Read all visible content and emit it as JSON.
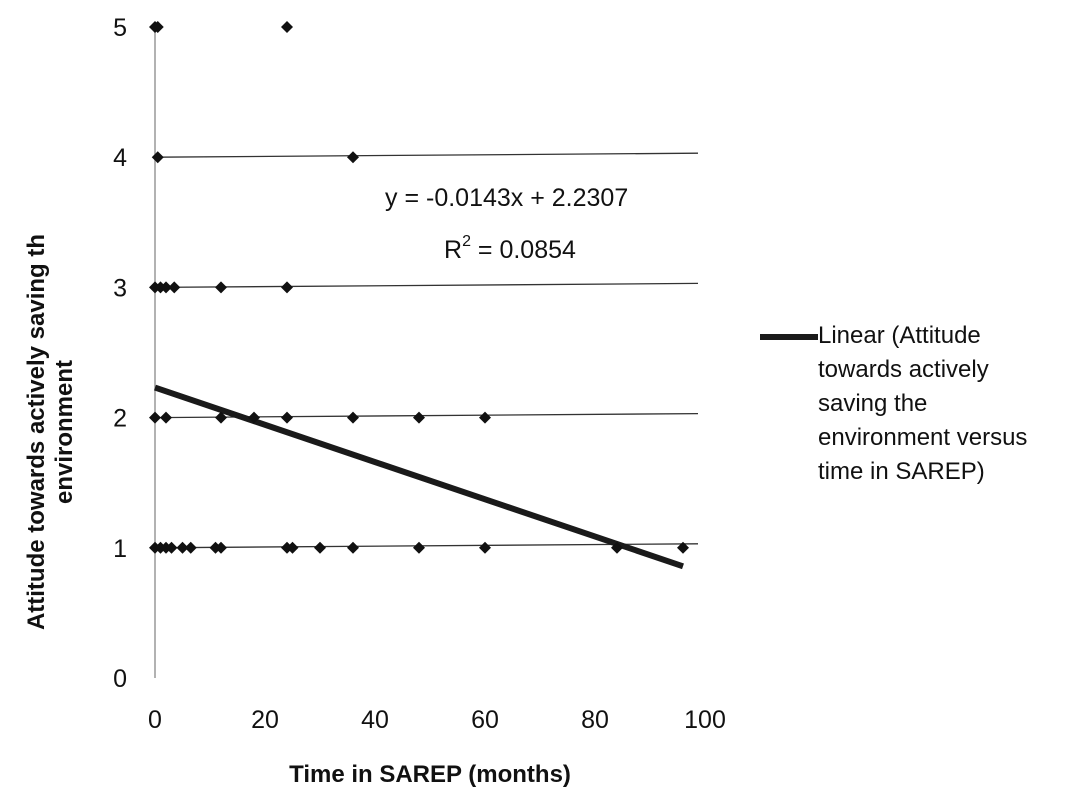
{
  "chart_data": {
    "type": "scatter",
    "title": "",
    "xlabel": "Time in SAREP (months)",
    "ylabel_lines": [
      "Attitude towards actively saving th",
      "environment"
    ],
    "xlim": [
      0,
      100
    ],
    "ylim": [
      0,
      5
    ],
    "xticks": [
      "0",
      "20",
      "40",
      "60",
      "80",
      "100"
    ],
    "yticks": [
      "0",
      "1",
      "2",
      "3",
      "4",
      "5"
    ],
    "grid": "none",
    "points": [
      {
        "x": 0,
        "y": 5
      },
      {
        "x": 0.5,
        "y": 5
      },
      {
        "x": 24,
        "y": 5
      },
      {
        "x": 0.5,
        "y": 4
      },
      {
        "x": 36,
        "y": 4
      },
      {
        "x": 0,
        "y": 3
      },
      {
        "x": 1,
        "y": 3
      },
      {
        "x": 2,
        "y": 3
      },
      {
        "x": 3.5,
        "y": 3
      },
      {
        "x": 12,
        "y": 3
      },
      {
        "x": 24,
        "y": 3
      },
      {
        "x": 0,
        "y": 2
      },
      {
        "x": 2,
        "y": 2
      },
      {
        "x": 12,
        "y": 2
      },
      {
        "x": 18,
        "y": 2
      },
      {
        "x": 24,
        "y": 2
      },
      {
        "x": 36,
        "y": 2
      },
      {
        "x": 48,
        "y": 2
      },
      {
        "x": 60,
        "y": 2
      },
      {
        "x": 0,
        "y": 1
      },
      {
        "x": 1,
        "y": 1
      },
      {
        "x": 2,
        "y": 1
      },
      {
        "x": 3,
        "y": 1
      },
      {
        "x": 5,
        "y": 1
      },
      {
        "x": 6.5,
        "y": 1
      },
      {
        "x": 11,
        "y": 1
      },
      {
        "x": 12,
        "y": 1
      },
      {
        "x": 24,
        "y": 1
      },
      {
        "x": 25,
        "y": 1
      },
      {
        "x": 30,
        "y": 1
      },
      {
        "x": 36,
        "y": 1
      },
      {
        "x": 48,
        "y": 1
      },
      {
        "x": 60,
        "y": 1
      },
      {
        "x": 84,
        "y": 1
      },
      {
        "x": 96,
        "y": 1
      }
    ],
    "level_lines": [
      1,
      2,
      3,
      4
    ],
    "trendline": {
      "slope": -0.0143,
      "intercept": 2.2307,
      "x_range": [
        0,
        96
      ]
    },
    "equation": "y = -0.0143x + 2.2307",
    "r2_prefix": "R",
    "r2_sup": "2",
    "r2_value": " = 0.0854",
    "legend": {
      "position": "right",
      "lines": [
        "Linear (Attitude",
        "towards actively",
        "saving the",
        "environment versus",
        "time in SAREP)"
      ]
    }
  }
}
